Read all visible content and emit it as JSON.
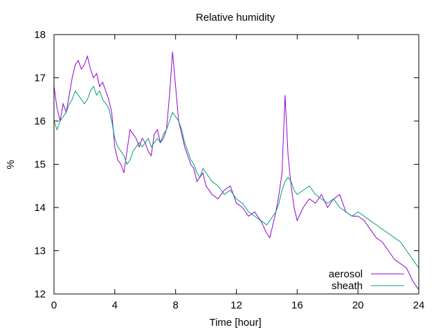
{
  "chart_data": {
    "type": "line",
    "title": "Relative humidity",
    "xlabel": "Time [hour]",
    "ylabel": "%",
    "xlim": [
      0,
      24
    ],
    "ylim": [
      12,
      18
    ],
    "xticks": [
      0,
      4,
      8,
      12,
      16,
      20,
      24
    ],
    "yticks": [
      12,
      13,
      14,
      15,
      16,
      17,
      18
    ],
    "grid": false,
    "legend_position": "bottom-right",
    "series": [
      {
        "name": "aerosol",
        "color": "#9400d3",
        "x": [
          0,
          0.2,
          0.4,
          0.6,
          0.8,
          1.0,
          1.2,
          1.4,
          1.6,
          1.8,
          2.0,
          2.2,
          2.4,
          2.6,
          2.8,
          3.0,
          3.2,
          3.4,
          3.6,
          3.8,
          4.0,
          4.2,
          4.4,
          4.6,
          4.8,
          5.0,
          5.2,
          5.4,
          5.6,
          5.8,
          6.0,
          6.2,
          6.4,
          6.6,
          6.8,
          7.0,
          7.2,
          7.4,
          7.6,
          7.8,
          8.0,
          8.2,
          8.4,
          8.6,
          8.8,
          9.0,
          9.2,
          9.4,
          9.6,
          9.8,
          10.0,
          10.4,
          10.8,
          11.2,
          11.6,
          12.0,
          12.4,
          12.8,
          13.2,
          13.6,
          14.0,
          14.2,
          14.4,
          14.6,
          14.8,
          15.0,
          15.2,
          15.4,
          15.6,
          15.8,
          16.0,
          16.4,
          16.8,
          17.2,
          17.6,
          18.0,
          18.4,
          18.8,
          19.2,
          19.6,
          20.0,
          20.4,
          20.8,
          21.2,
          21.6,
          22.0,
          22.4,
          22.8,
          23.2,
          23.6,
          24.0
        ],
        "y": [
          16.8,
          16.3,
          16.0,
          16.4,
          16.2,
          16.6,
          17.0,
          17.3,
          17.4,
          17.2,
          17.3,
          17.5,
          17.2,
          17.0,
          17.1,
          16.8,
          16.9,
          16.7,
          16.5,
          16.2,
          15.4,
          15.1,
          15.0,
          14.8,
          15.3,
          15.8,
          15.7,
          15.6,
          15.4,
          15.6,
          15.5,
          15.3,
          15.2,
          15.7,
          15.8,
          15.5,
          15.6,
          15.8,
          16.6,
          17.6,
          16.8,
          16.0,
          15.7,
          15.4,
          15.2,
          15.0,
          14.9,
          14.6,
          14.7,
          14.8,
          14.5,
          14.3,
          14.2,
          14.4,
          14.5,
          14.1,
          14.0,
          13.8,
          13.9,
          13.7,
          13.4,
          13.3,
          13.6,
          13.9,
          14.3,
          14.8,
          16.6,
          15.2,
          14.5,
          14.0,
          13.7,
          14.0,
          14.2,
          14.1,
          14.3,
          14.0,
          14.2,
          14.3,
          13.9,
          13.8,
          13.8,
          13.7,
          13.5,
          13.3,
          13.2,
          13.0,
          12.8,
          12.7,
          12.6,
          12.3,
          12.1
        ]
      },
      {
        "name": "sheath",
        "color": "#009e73",
        "x": [
          0,
          0.2,
          0.4,
          0.6,
          0.8,
          1.0,
          1.2,
          1.4,
          1.6,
          1.8,
          2.0,
          2.2,
          2.4,
          2.6,
          2.8,
          3.0,
          3.2,
          3.4,
          3.6,
          3.8,
          4.0,
          4.2,
          4.4,
          4.6,
          4.8,
          5.0,
          5.2,
          5.4,
          5.6,
          5.8,
          6.0,
          6.2,
          6.4,
          6.6,
          6.8,
          7.0,
          7.2,
          7.4,
          7.6,
          7.8,
          8.0,
          8.2,
          8.4,
          8.6,
          8.8,
          9.0,
          9.2,
          9.4,
          9.6,
          9.8,
          10.0,
          10.4,
          10.8,
          11.2,
          11.6,
          12.0,
          12.4,
          12.8,
          13.2,
          13.6,
          14.0,
          14.2,
          14.4,
          14.6,
          14.8,
          15.0,
          15.2,
          15.4,
          15.6,
          15.8,
          16.0,
          16.4,
          16.8,
          17.2,
          17.6,
          18.0,
          18.4,
          18.8,
          19.2,
          19.6,
          20.0,
          20.4,
          20.8,
          21.2,
          21.6,
          22.0,
          22.4,
          22.8,
          23.2,
          23.6,
          24.0
        ],
        "y": [
          16.0,
          15.8,
          16.0,
          16.1,
          16.2,
          16.4,
          16.5,
          16.7,
          16.6,
          16.5,
          16.4,
          16.5,
          16.7,
          16.8,
          16.6,
          16.7,
          16.5,
          16.4,
          16.3,
          16.0,
          15.6,
          15.4,
          15.3,
          15.2,
          15.0,
          15.1,
          15.3,
          15.4,
          15.5,
          15.4,
          15.5,
          15.6,
          15.4,
          15.5,
          15.6,
          15.5,
          15.7,
          15.8,
          16.0,
          16.2,
          16.1,
          16.0,
          15.8,
          15.5,
          15.3,
          15.1,
          15.0,
          14.8,
          14.7,
          14.9,
          14.8,
          14.6,
          14.5,
          14.3,
          14.4,
          14.2,
          14.1,
          13.9,
          13.8,
          13.7,
          13.6,
          13.7,
          13.8,
          13.9,
          14.1,
          14.4,
          14.6,
          14.7,
          14.6,
          14.4,
          14.3,
          14.4,
          14.5,
          14.3,
          14.2,
          14.1,
          14.2,
          14.0,
          13.9,
          13.8,
          13.9,
          13.8,
          13.7,
          13.6,
          13.5,
          13.4,
          13.3,
          13.2,
          13.0,
          12.8,
          12.6
        ]
      }
    ]
  }
}
